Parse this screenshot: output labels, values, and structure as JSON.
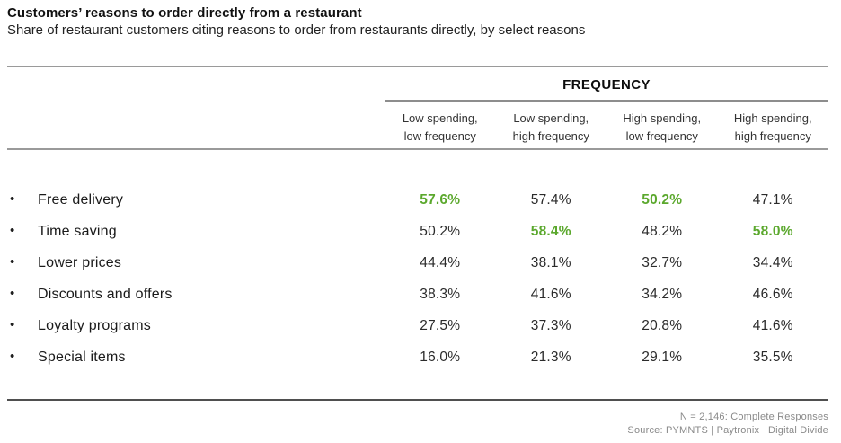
{
  "page": {
    "title": "Customers’ reasons to order directly from a restaurant",
    "subtitle": "Share of restaurant customers citing reasons to order from restaurants directly, by select reasons"
  },
  "table": {
    "group_header": "FREQUENCY",
    "bullet": "•",
    "columns": [
      {
        "line1": "Low spending,",
        "line2": "low frequency"
      },
      {
        "line1": "Low spending,",
        "line2": "high frequency"
      },
      {
        "line1": "High spending,",
        "line2": "low frequency"
      },
      {
        "line1": "High spending,",
        "line2": "high frequency"
      }
    ],
    "rows": [
      {
        "label": "Free delivery",
        "values": [
          {
            "text": "57.6%",
            "highlight": true
          },
          {
            "text": "57.4%",
            "highlight": false
          },
          {
            "text": "50.2%",
            "highlight": true
          },
          {
            "text": "47.1%",
            "highlight": false
          }
        ]
      },
      {
        "label": "Time saving",
        "values": [
          {
            "text": "50.2%",
            "highlight": false
          },
          {
            "text": "58.4%",
            "highlight": true
          },
          {
            "text": "48.2%",
            "highlight": false
          },
          {
            "text": "58.0%",
            "highlight": true
          }
        ]
      },
      {
        "label": "Lower prices",
        "values": [
          {
            "text": "44.4%",
            "highlight": false
          },
          {
            "text": "38.1%",
            "highlight": false
          },
          {
            "text": "32.7%",
            "highlight": false
          },
          {
            "text": "34.4%",
            "highlight": false
          }
        ]
      },
      {
        "label": "Discounts and offers",
        "values": [
          {
            "text": "38.3%",
            "highlight": false
          },
          {
            "text": "41.6%",
            "highlight": false
          },
          {
            "text": "34.2%",
            "highlight": false
          },
          {
            "text": "46.6%",
            "highlight": false
          }
        ]
      },
      {
        "label": "Loyalty programs",
        "values": [
          {
            "text": "27.5%",
            "highlight": false
          },
          {
            "text": "37.3%",
            "highlight": false
          },
          {
            "text": "20.8%",
            "highlight": false
          },
          {
            "text": "41.6%",
            "highlight": false
          }
        ]
      },
      {
        "label": "Special items",
        "values": [
          {
            "text": "16.0%",
            "highlight": false
          },
          {
            "text": "21.3%",
            "highlight": false
          },
          {
            "text": "29.1%",
            "highlight": false
          },
          {
            "text": "35.5%",
            "highlight": false
          }
        ]
      }
    ]
  },
  "footer": {
    "note1": "N = 2,146: Complete Responses",
    "note2": "Source: PYMNTS | Paytronix   Digital Divide"
  },
  "colors": {
    "highlight_green": "#5ba82d",
    "text_dark": "#1f1f1f",
    "rule_gray": "#9a9a9a",
    "rule_dark": "#4f4f4f",
    "footer_gray": "#8a8a8a"
  },
  "chart_data": {
    "type": "table",
    "title": "Customers’ reasons to order directly from a restaurant",
    "subtitle": "Share of restaurant customers citing reasons to order from restaurants directly, by select reasons",
    "column_group_label": "FREQUENCY",
    "unit": "%",
    "categories": [
      "Free delivery",
      "Time saving",
      "Lower prices",
      "Discounts and offers",
      "Loyalty programs",
      "Special items"
    ],
    "series": [
      {
        "name": "Low spending, low frequency",
        "values": [
          57.6,
          50.2,
          44.4,
          38.3,
          27.5,
          16.0
        ]
      },
      {
        "name": "Low spending, high frequency",
        "values": [
          57.4,
          58.4,
          38.1,
          41.6,
          37.3,
          21.3
        ]
      },
      {
        "name": "High spending, low frequency",
        "values": [
          50.2,
          48.2,
          32.7,
          34.2,
          20.8,
          29.1
        ]
      },
      {
        "name": "High spending, high frequency",
        "values": [
          47.1,
          58.0,
          34.4,
          46.6,
          41.6,
          35.5
        ]
      }
    ],
    "highlighted_cells": [
      {
        "row": "Free delivery",
        "column": "Low spending, low frequency",
        "value": 57.6
      },
      {
        "row": "Free delivery",
        "column": "High spending, low frequency",
        "value": 50.2
      },
      {
        "row": "Time saving",
        "column": "Low spending, high frequency",
        "value": 58.4
      },
      {
        "row": "Time saving",
        "column": "High spending, high frequency",
        "value": 58.0
      }
    ],
    "note": "N = 2,146: Complete Responses",
    "source": "Source: PYMNTS | Paytronix   Digital Divide"
  }
}
